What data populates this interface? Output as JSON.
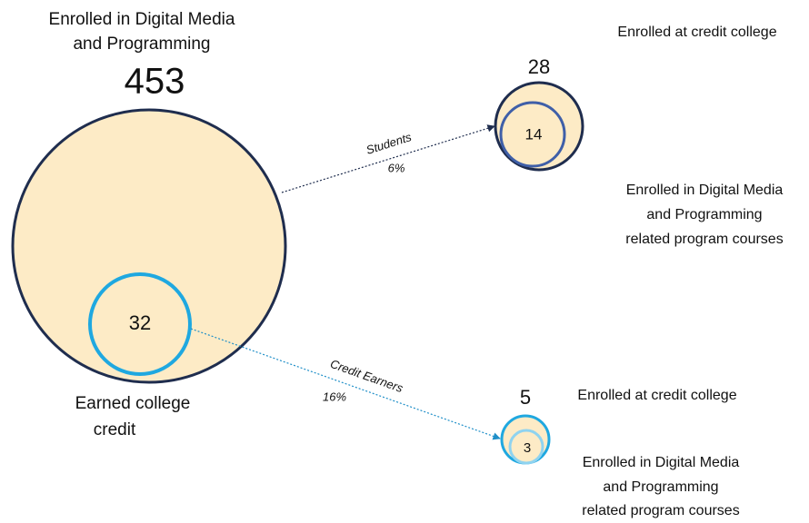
{
  "main": {
    "label_lines": [
      "Enrolled in Digital Media",
      "and Programming"
    ],
    "count": 453
  },
  "credit_earners": {
    "count": 32,
    "label_lines": [
      "Earned college",
      "credit"
    ]
  },
  "students_flow": {
    "label": "Students",
    "percent": "6%"
  },
  "credit_flow": {
    "label": "Credit Earners",
    "percent": "16%"
  },
  "students_outcome": {
    "enrolled_label": "Enrolled at credit college",
    "enrolled_count": 28,
    "program_count": 14,
    "program_label_lines": [
      "Enrolled in Digital Media",
      "and Programming",
      "related program courses"
    ]
  },
  "earners_outcome": {
    "enrolled_label": "Enrolled at credit college",
    "enrolled_count": 5,
    "program_count": 3,
    "program_label_lines": [
      "Enrolled in Digital Media",
      "and Programming",
      "related program courses"
    ]
  }
}
